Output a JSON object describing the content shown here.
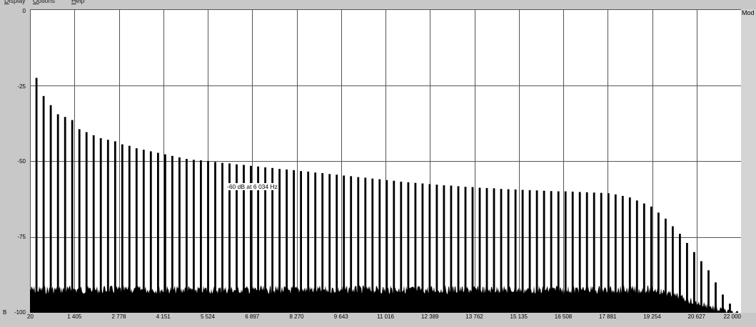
{
  "menu": {
    "items": [
      {
        "label": "Display",
        "accelerator": "D"
      },
      {
        "label": "Options",
        "accelerator": "O"
      },
      {
        "label": "Help",
        "accelerator": "H"
      }
    ]
  },
  "corner_text": "Mod",
  "cursor_readout": "-60 dB at 6 034 Hz",
  "y_prefix": "B",
  "colors": {
    "plot_bg": "#ffffff",
    "grid": "#555555",
    "trace": "#000000",
    "window": "#c8c8c8"
  },
  "chart_data": {
    "type": "bar",
    "title": "",
    "xlabel": "",
    "ylabel": "dB",
    "xlim": [
      20,
      22000
    ],
    "ylim": [
      -100,
      0
    ],
    "y_ticks": [
      "0",
      "-25",
      "-50",
      "-75",
      "-100"
    ],
    "x_ticks": [
      "20",
      "1 405",
      "2 778",
      "4 151",
      "5 524",
      "6 897",
      "8 270",
      "9 643",
      "11 016",
      "12 389",
      "13 762",
      "15 135",
      "16 508",
      "17 881",
      "19 254",
      "20 627",
      "22 000"
    ],
    "grid": true,
    "noise_floor_db": -91,
    "harmonics": {
      "fundamental_hz": 221,
      "levels_db": [
        -22.6,
        -28.6,
        -31.6,
        -34.6,
        -35.5,
        -36.5,
        -39.5,
        -40.5,
        -41.5,
        -42.5,
        -43,
        -43.5,
        -44.5,
        -45,
        -45.8,
        -46.3,
        -46.8,
        -47.3,
        -47.8,
        -48.3,
        -48.8,
        -49.3,
        -49.6,
        -49.8,
        -50,
        -50.3,
        -50.6,
        -50.8,
        -51.1,
        -51.3,
        -51.6,
        -51.8,
        -52.1,
        -52.3,
        -52.6,
        -52.8,
        -53,
        -53.3,
        -53.5,
        -53.8,
        -54,
        -54.3,
        -54.5,
        -54.8,
        -55,
        -55.3,
        -55.5,
        -55.8,
        -56,
        -56.3,
        -56.5,
        -56.8,
        -57,
        -57.2,
        -57.4,
        -57.6,
        -57.8,
        -58,
        -58.1,
        -58.3,
        -58.5,
        -58.6,
        -58.8,
        -58.9,
        -59,
        -59.2,
        -59.3,
        -59.4,
        -59.5,
        -59.6,
        -59.7,
        -59.8,
        -59.9,
        -60,
        -60,
        -60.1,
        -60.2,
        -60.3,
        -60.4,
        -60.5,
        -60.6,
        -61,
        -61.5,
        -62,
        -63,
        -64,
        -65,
        -67,
        -69,
        -71.5,
        -74,
        -77,
        -80,
        -83,
        -86,
        -90,
        -94,
        -97,
        -99.5,
        -99.8
      ]
    }
  }
}
